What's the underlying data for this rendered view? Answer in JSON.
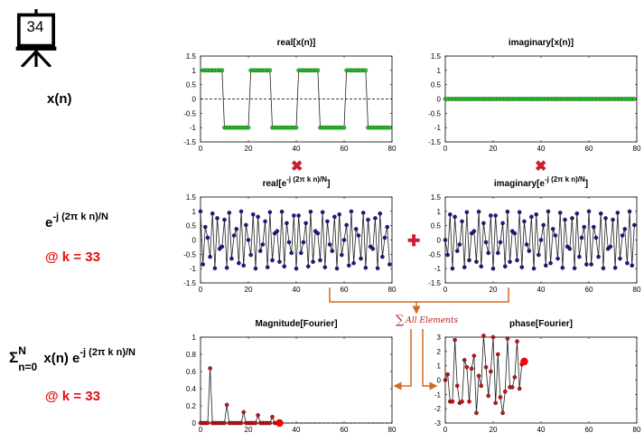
{
  "slide": {
    "number": "34"
  },
  "row_labels": {
    "xn": "x(n)",
    "basis_main": "e",
    "basis_sup": "-j (2π k n)/N",
    "k_label_1": "@ k = 33",
    "sum_sigma": "Σ",
    "sum_sup": "N",
    "sum_sub": "n=0",
    "sum_body": "x(n) e",
    "sum_body_sup": "-j (2π k n)/N",
    "k_label_2": "@ k = 33"
  },
  "operators": {
    "multiply": "✖",
    "add": "✚"
  },
  "annotation": {
    "sigma": "∑",
    "text": "All Elements"
  },
  "colors": {
    "green_marker": "#22cc22",
    "blue_marker": "#1a1a8c",
    "red_marker": "#cc1111",
    "highlight": "#ff0000",
    "operator_red": "#cc1f2e",
    "arrow_orange": "#d2691e"
  },
  "chart_data": [
    {
      "type": "line",
      "id": "real-xn",
      "title": "real[x(n)]",
      "xlim": [
        0,
        80
      ],
      "ylim": [
        -1.5,
        1.5
      ],
      "xticks": [
        0,
        20,
        40,
        60,
        80
      ],
      "yticks": [
        -1.5,
        -1,
        -0.5,
        0,
        0.5,
        1,
        1.5
      ],
      "ytick_labels": [
        "-1.5",
        "-1",
        "-0.5",
        "0",
        "0.5",
        "1",
        "1.5"
      ],
      "zero_line": true,
      "marker_color": "#22cc22",
      "series": [
        {
          "generator": "square",
          "period": 20,
          "high_count": 9,
          "n_start": 1,
          "n_end": 79,
          "amplitude": 1
        }
      ]
    },
    {
      "type": "line",
      "id": "imag-xn",
      "title": "imaginary[x(n)]",
      "xlim": [
        0,
        80
      ],
      "ylim": [
        -1.5,
        1.5
      ],
      "xticks": [
        0,
        20,
        40,
        60,
        80
      ],
      "yticks": [
        -1.5,
        -1,
        -0.5,
        0,
        0.5,
        1,
        1.5
      ],
      "ytick_labels": [
        "-1.5",
        "-1",
        "-0.5",
        "0",
        "0.5",
        "1",
        "1.5"
      ],
      "zero_line": true,
      "marker_color": "#22cc22",
      "series": [
        {
          "generator": "constant",
          "value": 0,
          "n_start": 0,
          "n_end": 79
        }
      ]
    },
    {
      "type": "line",
      "id": "real-basis",
      "title": "real[e",
      "title_sup": "-j (2π k n)/N",
      "title_end": "]",
      "xlim": [
        0,
        80
      ],
      "ylim": [
        -1.5,
        1.5
      ],
      "xticks": [
        0,
        20,
        40,
        60,
        80
      ],
      "yticks": [
        -1.5,
        -1,
        -0.5,
        0,
        0.5,
        1,
        1.5
      ],
      "ytick_labels": [
        "-1.5",
        "-1",
        "-0.5",
        "0",
        "0.5",
        "1",
        "1.5"
      ],
      "zero_line": false,
      "marker_color": "#1a1a8c",
      "series": [
        {
          "generator": "cos",
          "k": 33,
          "N": 80,
          "n_start": 0,
          "n_end": 79
        }
      ]
    },
    {
      "type": "line",
      "id": "imag-basis",
      "title": "imaginary[e",
      "title_sup": "-j (2π k n)/N",
      "title_end": "]",
      "xlim": [
        0,
        80
      ],
      "ylim": [
        -1.5,
        1.5
      ],
      "xticks": [
        0,
        20,
        40,
        60,
        80
      ],
      "yticks": [
        -1.5,
        -1,
        -0.5,
        0,
        0.5,
        1,
        1.5
      ],
      "ytick_labels": [
        "-1.5",
        "-1",
        "-0.5",
        "0",
        "0.5",
        "1",
        "1.5"
      ],
      "zero_line": false,
      "marker_color": "#1a1a8c",
      "series": [
        {
          "generator": "neg_sin",
          "k": 33,
          "N": 80,
          "n_start": 0,
          "n_end": 79
        }
      ]
    },
    {
      "type": "line",
      "id": "magnitude",
      "title": "Magnitude[Fourier]",
      "xlim": [
        0,
        80
      ],
      "ylim": [
        0,
        1
      ],
      "xticks": [
        0,
        20,
        40,
        60,
        80
      ],
      "yticks": [
        0,
        0.2,
        0.4,
        0.6,
        0.8,
        1
      ],
      "ytick_labels": [
        "0",
        "0.2",
        "0.4",
        "0.6",
        "0.8",
        "1"
      ],
      "zero_line": false,
      "dashed_baseline": true,
      "marker_color": "#cc1111",
      "series": [
        {
          "x": [
            0,
            1,
            2,
            3,
            4,
            5,
            6,
            7,
            8,
            9,
            10,
            11,
            12,
            13,
            14,
            15,
            16,
            17,
            18,
            19,
            20,
            21,
            22,
            23,
            24,
            25,
            26,
            27,
            28,
            29,
            30,
            31,
            32,
            33
          ],
          "y": [
            0,
            0,
            0,
            0,
            0.637,
            0,
            0,
            0,
            0,
            0,
            0,
            0.212,
            0,
            0,
            0,
            0,
            0,
            0,
            0.127,
            0,
            0,
            0,
            0,
            0,
            0.091,
            0,
            0,
            0,
            0,
            0,
            0.071,
            0,
            0,
            0
          ]
        }
      ],
      "highlight": {
        "x": 33,
        "y": 0
      }
    },
    {
      "type": "line",
      "id": "phase",
      "title": "phase[Fourier]",
      "xlim": [
        0,
        80
      ],
      "ylim": [
        -3,
        3
      ],
      "xticks": [
        0,
        20,
        40,
        60,
        80
      ],
      "yticks": [
        -3,
        -2,
        -1,
        0,
        1,
        2,
        3
      ],
      "ytick_labels": [
        "-3",
        "-2",
        "-1",
        "0",
        "1",
        "2",
        "3"
      ],
      "zero_line": false,
      "marker_color": "#cc1111",
      "series": [
        {
          "x": [
            0,
            1,
            2,
            3,
            4,
            5,
            6,
            7,
            8,
            9,
            10,
            11,
            12,
            13,
            14,
            15,
            16,
            17,
            18,
            19,
            20,
            21,
            22,
            23,
            24,
            25,
            26,
            27,
            28,
            29,
            30,
            31,
            32,
            33
          ],
          "y": [
            0,
            0.4,
            -1.5,
            -1.5,
            2.8,
            -0.4,
            -1.6,
            -1.5,
            1.4,
            0.9,
            -1.5,
            0.8,
            1.7,
            -2.3,
            0.3,
            -0.4,
            3.1,
            0.9,
            -1.1,
            0.6,
            3.0,
            -1.6,
            1.8,
            -1.2,
            -2.3,
            -0.8,
            2.9,
            -0.5,
            -0.5,
            0.2,
            2.7,
            -0.6,
            1.1,
            1.3
          ]
        }
      ],
      "highlight": {
        "x": 33,
        "y": 1.3
      }
    }
  ]
}
